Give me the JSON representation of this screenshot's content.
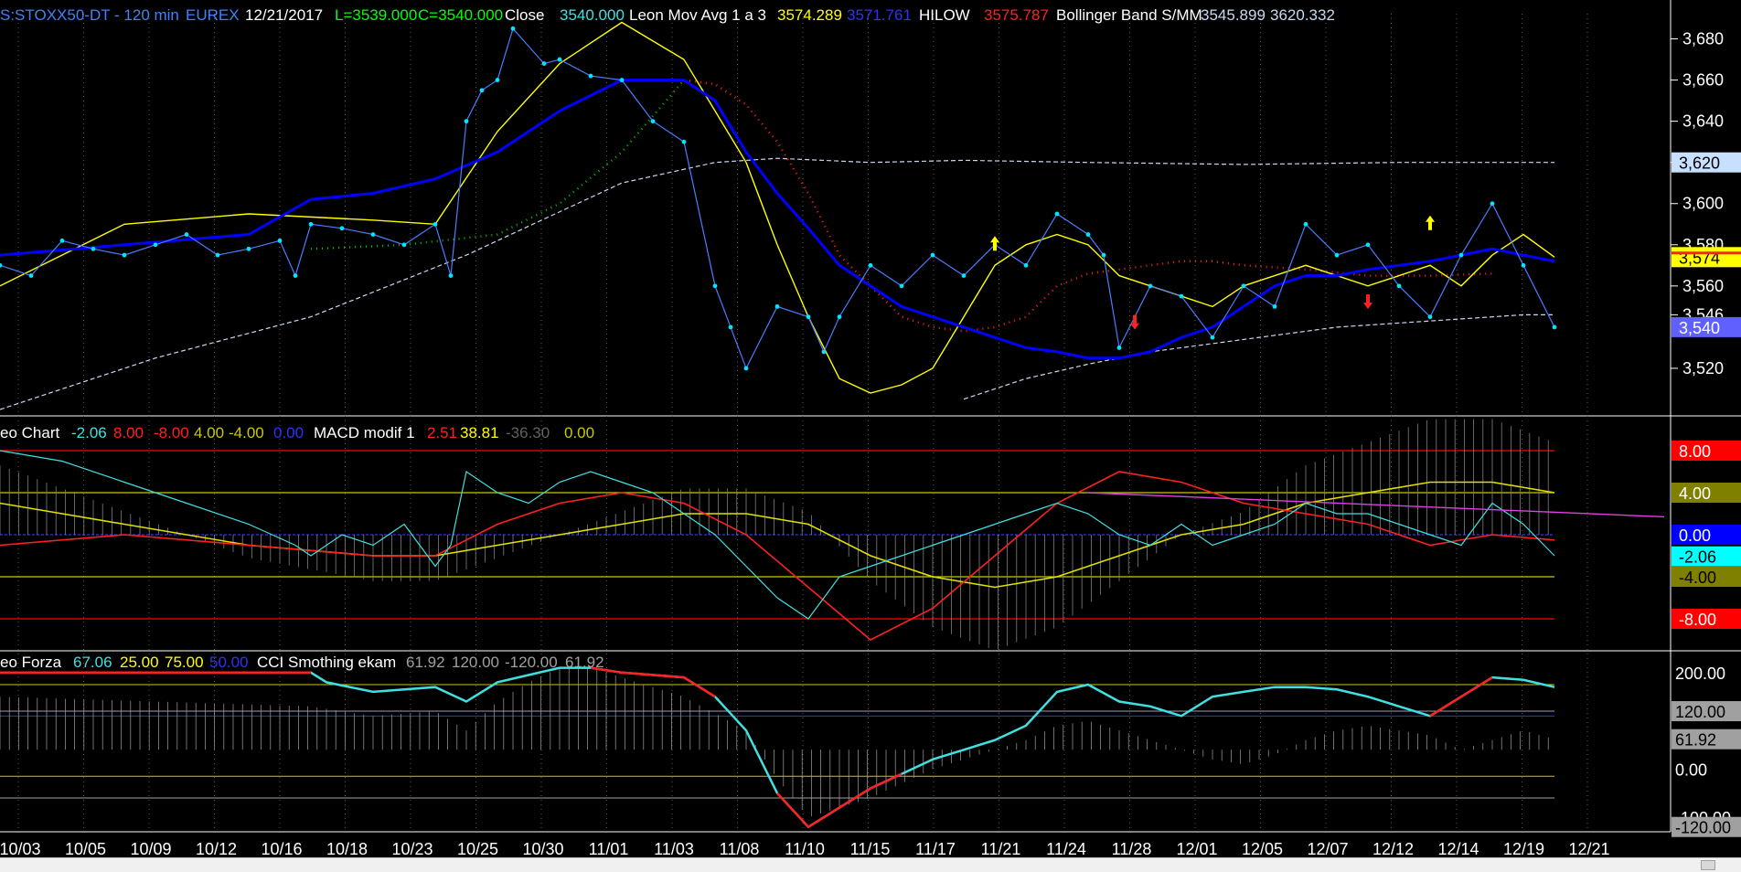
{
  "colors": {
    "background": "#000000",
    "price": "#1e90ff",
    "price_dots": "#00e5ff",
    "leon_mov_avg_1": "#ffff00",
    "leon_mov_avg_3": "#0000ff",
    "hilow": "#ff2020",
    "hilow_green": "#00c000",
    "bollinger": "#c8d8f0",
    "macd_line": "#40e0e0",
    "macd_signal_red": "#ff2020",
    "macd_signal_yellow": "#e0e000",
    "macd_hist": "#808080",
    "macd_magenta": "#e040e0",
    "cci_line": "#40e0e0",
    "cci_red": "#ff2020",
    "cci_hist": "#a0a0a0",
    "level_red": "#ff0000",
    "level_yellow": "#c8c800",
    "level_blue": "#3030ff",
    "axis_grid": "#ffffff",
    "arrow_up": "#ffff00",
    "arrow_down": "#ff2020"
  },
  "header": {
    "symbol": "S:STOXX50-DT - 120 min",
    "exchange": "EUREX",
    "date": "12/21/2017",
    "low": "L=3539.000",
    "close_value": "C=3540.000",
    "close_label": "Close",
    "close_num": "3540.000",
    "ma_label": "Leon Mov Avg 1 a 3",
    "ma_v1": "3574.289",
    "ma_v2": "3571.761",
    "hilow_label": "HILOW",
    "hilow_val": "3575.787",
    "bb_label": "Bollinger Band S/MM",
    "bb_v1": "3545.899",
    "bb_v2": "3620.332"
  },
  "panel2_header": {
    "label": "eo Chart",
    "v1": "-2.06",
    "v2": "8.00",
    "v3": "-8.00",
    "v4": "4.00",
    "v5": "-4.00",
    "v6": "0.00",
    "macd_label": "MACD modif 1",
    "m1": "2.51",
    "m2": "38.81",
    "m3": "-36.30",
    "m4": "0.00"
  },
  "panel3_header": {
    "label": "eo Forza",
    "v1": "67.06",
    "v2": "25.00",
    "v3": "75.00",
    "v4": "50.00",
    "cci_label": "CCI Smothing ekam",
    "c1": "61.92",
    "c2": "120.00",
    "c3": "-120.00",
    "c4": "61.92"
  },
  "right_axis": {
    "price_ticks": [
      "3,680",
      "3,660",
      "3,640",
      "3,620",
      "3,600",
      "3,580",
      "3,560",
      "3,546",
      "3,520"
    ],
    "price_tags": [
      {
        "text": "3,620",
        "bg": "#c8e0ff",
        "fg": "#000000",
        "value": 3620
      },
      {
        "text": "3,574",
        "bg": "#ffff00",
        "fg": "#000000",
        "value": 3574
      },
      {
        "text": "3,540",
        "bg": "#6060ff",
        "fg": "#ffffff",
        "value": 3540
      }
    ],
    "panel2_tags": [
      {
        "text": "8.00",
        "bg": "#ff0000",
        "fg": "#ffffff",
        "value": 8
      },
      {
        "text": "4.00",
        "bg": "#808000",
        "fg": "#ffffff",
        "value": 4
      },
      {
        "text": "0.00",
        "bg": "#0000ff",
        "fg": "#ffffff",
        "value": 0
      },
      {
        "text": "-2.06",
        "bg": "#00ffff",
        "fg": "#000000",
        "value": -2.06
      },
      {
        "text": "-4.00",
        "bg": "#808000",
        "fg": "#000000",
        "value": -4
      },
      {
        "text": "-8.00",
        "bg": "#ff0000",
        "fg": "#ffffff",
        "value": -8
      }
    ],
    "panel3_tags": [
      {
        "text": "200.00",
        "bg": "#000000",
        "fg": "#ffffff",
        "value": 200
      },
      {
        "text": "120.00",
        "bg": "#a0a0a0",
        "fg": "#000000",
        "value": 120
      },
      {
        "text": "61.92",
        "bg": "#a0a0a0",
        "fg": "#000000",
        "value": 61.92
      },
      {
        "text": "0.00",
        "bg": "#000000",
        "fg": "#ffffff",
        "value": 0
      },
      {
        "text": "-100.00",
        "bg": "#000000",
        "fg": "#ffffff",
        "value": -100
      },
      {
        "text": "-120.00",
        "bg": "#a0a0a0",
        "fg": "#000000",
        "value": -120
      }
    ]
  },
  "x_axis": {
    "dates": [
      "10/03",
      "10/05",
      "10/09",
      "10/12",
      "10/16",
      "10/18",
      "10/23",
      "10/25",
      "10/30",
      "11/01",
      "11/03",
      "11/08",
      "11/10",
      "11/15",
      "11/17",
      "11/21",
      "11/24",
      "11/28",
      "12/01",
      "12/05",
      "12/07",
      "12/12",
      "12/14",
      "12/19",
      "12/21"
    ]
  },
  "chart_data": [
    {
      "type": "line",
      "title": "S:STOXX50-DT - 120 min",
      "ylim": [
        3500,
        3690
      ],
      "x_index_range": [
        0,
        100
      ],
      "series": [
        {
          "name": "Close",
          "x": [
            0,
            2,
            4,
            6,
            8,
            10,
            12,
            14,
            16,
            18,
            19,
            20,
            22,
            24,
            26,
            28,
            29,
            30,
            31,
            32,
            33,
            35,
            36,
            38,
            40,
            42,
            44,
            46,
            47,
            48,
            50,
            52,
            53,
            54,
            56,
            58,
            60,
            62,
            64,
            66,
            68,
            70,
            71,
            72,
            74,
            76,
            78,
            80,
            82,
            84,
            86,
            88,
            90,
            92,
            94,
            96,
            98,
            100
          ],
          "values": [
            3570,
            3565,
            3582,
            3578,
            3575,
            3580,
            3585,
            3575,
            3578,
            3582,
            3565,
            3590,
            3588,
            3585,
            3580,
            3590,
            3565,
            3640,
            3655,
            3660,
            3685,
            3668,
            3670,
            3662,
            3660,
            3640,
            3630,
            3560,
            3540,
            3520,
            3550,
            3545,
            3528,
            3545,
            3570,
            3560,
            3575,
            3565,
            3580,
            3570,
            3595,
            3585,
            3575,
            3530,
            3560,
            3555,
            3535,
            3560,
            3550,
            3590,
            3575,
            3580,
            3560,
            3545,
            3575,
            3600,
            3570,
            3540
          ]
        },
        {
          "name": "Leon Mov Avg 1",
          "x": [
            0,
            8,
            16,
            24,
            28,
            32,
            36,
            40,
            44,
            48,
            50,
            52,
            54,
            56,
            58,
            60,
            62,
            64,
            66,
            68,
            70,
            72,
            74,
            76,
            78,
            80,
            82,
            84,
            86,
            88,
            90,
            92,
            94,
            96,
            98,
            100
          ],
          "values": [
            3560,
            3590,
            3595,
            3592,
            3590,
            3635,
            3668,
            3688,
            3670,
            3620,
            3580,
            3545,
            3515,
            3508,
            3512,
            3520,
            3545,
            3570,
            3580,
            3585,
            3580,
            3565,
            3560,
            3555,
            3550,
            3560,
            3565,
            3570,
            3565,
            3560,
            3565,
            3570,
            3560,
            3575,
            3585,
            3574
          ]
        },
        {
          "name": "Leon Mov Avg 3",
          "x": [
            0,
            8,
            16,
            20,
            24,
            28,
            32,
            36,
            40,
            44,
            46,
            48,
            50,
            52,
            54,
            56,
            58,
            60,
            62,
            64,
            66,
            68,
            70,
            72,
            74,
            76,
            78,
            80,
            82,
            84,
            86,
            88,
            90,
            92,
            94,
            96,
            98,
            100
          ],
          "values": [
            3575,
            3580,
            3585,
            3602,
            3605,
            3612,
            3625,
            3645,
            3660,
            3660,
            3650,
            3625,
            3605,
            3588,
            3570,
            3560,
            3550,
            3545,
            3540,
            3535,
            3530,
            3528,
            3525,
            3525,
            3528,
            3535,
            3540,
            3550,
            3560,
            3565,
            3565,
            3568,
            3570,
            3572,
            3575,
            3578,
            3575,
            3572
          ]
        },
        {
          "name": "HILOW",
          "x": [
            20,
            26,
            32,
            36,
            40,
            44,
            46,
            48,
            50,
            52,
            54,
            56,
            58,
            60,
            62,
            64,
            66,
            68,
            70,
            72,
            74,
            76,
            78,
            80,
            84,
            88,
            92,
            96
          ],
          "values": [
            3578,
            3580,
            3585,
            3600,
            3625,
            3660,
            3658,
            3648,
            3630,
            3605,
            3575,
            3560,
            3545,
            3540,
            3538,
            3540,
            3545,
            3560,
            3566,
            3568,
            3570,
            3572,
            3572,
            3570,
            3568,
            3565,
            3565,
            3566
          ]
        },
        {
          "name": "Bollinger Band S/MM upper",
          "x": [
            0,
            10,
            20,
            30,
            40,
            46,
            50,
            56,
            62,
            70,
            80,
            90,
            100
          ],
          "values": [
            3500,
            3525,
            3545,
            3575,
            3610,
            3620,
            3622,
            3620,
            3621,
            3620,
            3619,
            3620,
            3620
          ]
        },
        {
          "name": "Bollinger Band S/MM lower",
          "x": [
            62,
            66,
            70,
            74,
            78,
            82,
            86,
            90,
            94,
            98,
            100
          ],
          "values": [
            3505,
            3515,
            3522,
            3528,
            3532,
            3536,
            3540,
            3542,
            3544,
            3546,
            3546
          ]
        }
      ]
    },
    {
      "type": "line",
      "title": "MACD modif 1",
      "ylim": [
        -10,
        10
      ],
      "series": [
        {
          "name": "MACD modif 1",
          "x": [
            0,
            4,
            8,
            12,
            16,
            19,
            20,
            22,
            24,
            26,
            28,
            29,
            30,
            32,
            34,
            36,
            38,
            40,
            42,
            44,
            46,
            48,
            50,
            52,
            54,
            56,
            58,
            60,
            62,
            64,
            66,
            68,
            70,
            72,
            74,
            76,
            78,
            80,
            82,
            84,
            86,
            88,
            90,
            92,
            94,
            96,
            98,
            100
          ],
          "values": [
            8,
            7,
            5,
            3,
            1,
            -1,
            -2,
            0,
            -1,
            1,
            -3,
            -1,
            6,
            4,
            3,
            5,
            6,
            5,
            4,
            2,
            0,
            -3,
            -6,
            -8,
            -4,
            -3,
            -2,
            -1,
            0,
            1,
            2,
            3,
            2,
            0,
            -1,
            1,
            -1,
            0,
            1,
            3,
            2,
            2,
            1,
            0,
            -1,
            3,
            1,
            -2
          ]
        },
        {
          "name": "Signal red",
          "x": [
            0,
            8,
            16,
            24,
            28,
            32,
            36,
            40,
            44,
            48,
            52,
            56,
            60,
            64,
            68,
            72,
            76,
            80,
            84,
            88,
            92,
            96,
            100
          ],
          "values": [
            -1,
            0,
            -1,
            -2,
            -2,
            1,
            3,
            4,
            3,
            0,
            -5,
            -10,
            -7,
            -2,
            3,
            6,
            5,
            3,
            2,
            1,
            -1,
            0,
            -0.5
          ]
        },
        {
          "name": "Signal yellow",
          "x": [
            0,
            8,
            16,
            24,
            28,
            32,
            36,
            40,
            44,
            48,
            52,
            56,
            60,
            64,
            68,
            72,
            76,
            80,
            84,
            88,
            92,
            96,
            100
          ],
          "values": [
            3,
            1,
            -1,
            -2,
            -2,
            -1,
            0,
            1,
            2,
            2,
            1,
            -2,
            -4,
            -5,
            -4,
            -2,
            0,
            1,
            3,
            4,
            5,
            5,
            4
          ]
        }
      ]
    },
    {
      "type": "line",
      "title": "CCI Smothing ekam",
      "ylim": [
        -130,
        230
      ],
      "series": [
        {
          "name": "CCI Smothing ekam",
          "x": [
            0,
            10,
            20,
            21,
            24,
            28,
            30,
            32,
            34,
            36,
            38,
            40,
            44,
            46,
            48,
            50,
            52,
            54,
            56,
            58,
            60,
            62,
            64,
            66,
            68,
            70,
            72,
            74,
            76,
            78,
            80,
            82,
            84,
            86,
            88,
            90,
            92,
            94,
            96,
            98,
            100
          ],
          "values": [
            200,
            200,
            200,
            180,
            160,
            170,
            140,
            180,
            195,
            210,
            210,
            200,
            190,
            150,
            80,
            -50,
            -120,
            -80,
            -40,
            -10,
            20,
            40,
            60,
            90,
            160,
            175,
            140,
            130,
            110,
            150,
            160,
            170,
            170,
            165,
            150,
            130,
            110,
            150,
            190,
            185,
            170
          ]
        },
        {
          "name": "CCI histogram",
          "x": [
            0,
            10,
            20,
            24,
            28,
            30,
            32,
            34,
            36,
            38,
            40,
            44,
            48,
            50,
            52,
            54,
            56,
            58,
            60,
            62,
            64,
            66,
            68,
            70,
            72,
            74,
            76,
            78,
            80,
            82,
            84,
            86,
            88,
            90,
            92,
            94,
            96,
            98,
            100
          ],
          "values": [
            150,
            140,
            130,
            110,
            120,
            80,
            140,
            180,
            210,
            210,
            190,
            150,
            80,
            -20,
            -100,
            -80,
            -60,
            -30,
            0,
            20,
            40,
            60,
            90,
            100,
            80,
            60,
            40,
            20,
            10,
            30,
            60,
            80,
            90,
            80,
            70,
            40,
            60,
            80,
            62
          ]
        }
      ]
    }
  ]
}
